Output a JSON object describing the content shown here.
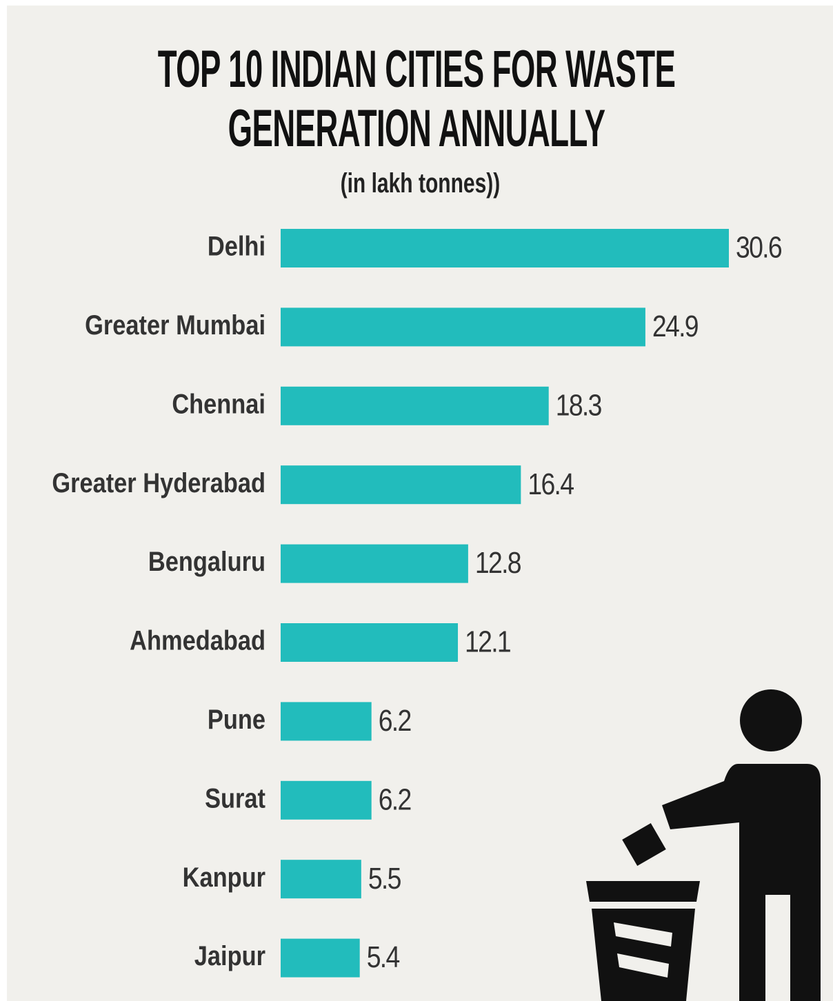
{
  "chart_data": {
    "type": "bar",
    "orientation": "horizontal",
    "title": "TOP 10 INDIAN CITIES FOR WASTE GENERATION ANNUALLY",
    "subtitle": "(in lakh tonnes))",
    "categories": [
      "Delhi",
      "Greater Mumbai",
      "Chennai",
      "Greater Hyderabad",
      "Bengaluru",
      "Ahmedabad",
      "Pune",
      "Surat",
      "Kanpur",
      "Jaipur"
    ],
    "values": [
      30.6,
      24.9,
      18.3,
      16.4,
      12.8,
      12.1,
      6.2,
      6.2,
      5.5,
      5.4
    ],
    "color": "#22bcbc"
  }
}
